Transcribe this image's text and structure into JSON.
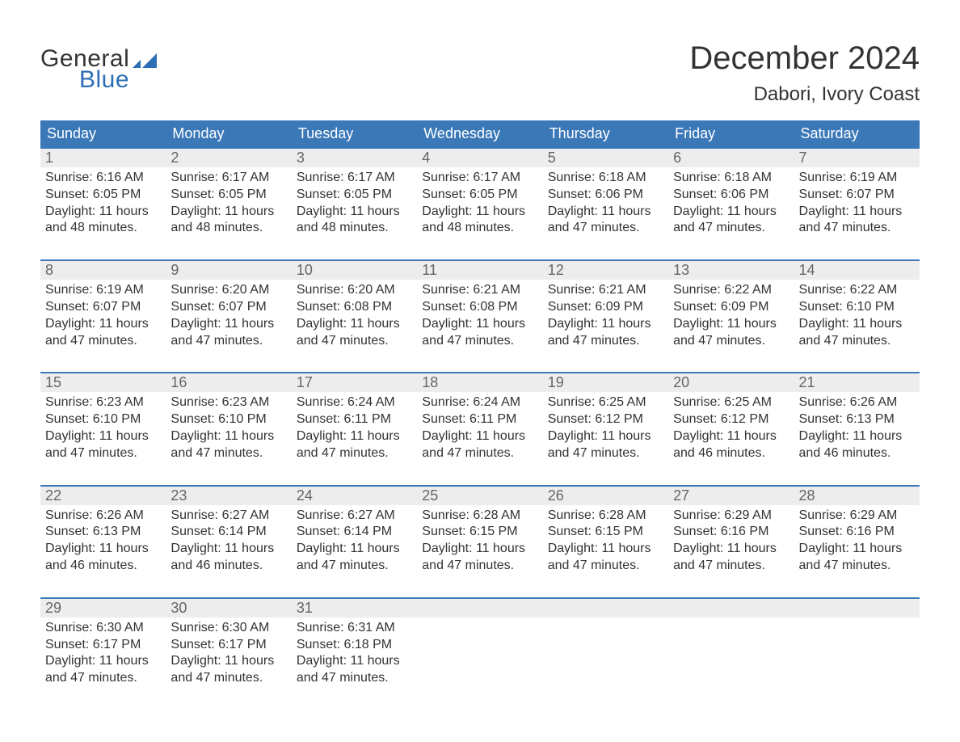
{
  "logo": {
    "word1": "General",
    "word2": "Blue",
    "flag_color": "#2d6fb5",
    "text_color_dark": "#333333",
    "text_color_blue": "#2d6fb5"
  },
  "header": {
    "month_title": "December 2024",
    "location": "Dabori, Ivory Coast"
  },
  "colors": {
    "header_bg": "#3b78b8",
    "header_text": "#ffffff",
    "daynum_bg": "#ededed",
    "daynum_text": "#666666",
    "border": "#3b78b8",
    "body_text": "#333333",
    "background": "#ffffff"
  },
  "weekdays": [
    "Sunday",
    "Monday",
    "Tuesday",
    "Wednesday",
    "Thursday",
    "Friday",
    "Saturday"
  ],
  "weeks": [
    [
      {
        "n": "1",
        "sunrise": "Sunrise: 6:16 AM",
        "sunset": "Sunset: 6:05 PM",
        "daylight": "Daylight: 11 hours and 48 minutes."
      },
      {
        "n": "2",
        "sunrise": "Sunrise: 6:17 AM",
        "sunset": "Sunset: 6:05 PM",
        "daylight": "Daylight: 11 hours and 48 minutes."
      },
      {
        "n": "3",
        "sunrise": "Sunrise: 6:17 AM",
        "sunset": "Sunset: 6:05 PM",
        "daylight": "Daylight: 11 hours and 48 minutes."
      },
      {
        "n": "4",
        "sunrise": "Sunrise: 6:17 AM",
        "sunset": "Sunset: 6:05 PM",
        "daylight": "Daylight: 11 hours and 48 minutes."
      },
      {
        "n": "5",
        "sunrise": "Sunrise: 6:18 AM",
        "sunset": "Sunset: 6:06 PM",
        "daylight": "Daylight: 11 hours and 47 minutes."
      },
      {
        "n": "6",
        "sunrise": "Sunrise: 6:18 AM",
        "sunset": "Sunset: 6:06 PM",
        "daylight": "Daylight: 11 hours and 47 minutes."
      },
      {
        "n": "7",
        "sunrise": "Sunrise: 6:19 AM",
        "sunset": "Sunset: 6:07 PM",
        "daylight": "Daylight: 11 hours and 47 minutes."
      }
    ],
    [
      {
        "n": "8",
        "sunrise": "Sunrise: 6:19 AM",
        "sunset": "Sunset: 6:07 PM",
        "daylight": "Daylight: 11 hours and 47 minutes."
      },
      {
        "n": "9",
        "sunrise": "Sunrise: 6:20 AM",
        "sunset": "Sunset: 6:07 PM",
        "daylight": "Daylight: 11 hours and 47 minutes."
      },
      {
        "n": "10",
        "sunrise": "Sunrise: 6:20 AM",
        "sunset": "Sunset: 6:08 PM",
        "daylight": "Daylight: 11 hours and 47 minutes."
      },
      {
        "n": "11",
        "sunrise": "Sunrise: 6:21 AM",
        "sunset": "Sunset: 6:08 PM",
        "daylight": "Daylight: 11 hours and 47 minutes."
      },
      {
        "n": "12",
        "sunrise": "Sunrise: 6:21 AM",
        "sunset": "Sunset: 6:09 PM",
        "daylight": "Daylight: 11 hours and 47 minutes."
      },
      {
        "n": "13",
        "sunrise": "Sunrise: 6:22 AM",
        "sunset": "Sunset: 6:09 PM",
        "daylight": "Daylight: 11 hours and 47 minutes."
      },
      {
        "n": "14",
        "sunrise": "Sunrise: 6:22 AM",
        "sunset": "Sunset: 6:10 PM",
        "daylight": "Daylight: 11 hours and 47 minutes."
      }
    ],
    [
      {
        "n": "15",
        "sunrise": "Sunrise: 6:23 AM",
        "sunset": "Sunset: 6:10 PM",
        "daylight": "Daylight: 11 hours and 47 minutes."
      },
      {
        "n": "16",
        "sunrise": "Sunrise: 6:23 AM",
        "sunset": "Sunset: 6:10 PM",
        "daylight": "Daylight: 11 hours and 47 minutes."
      },
      {
        "n": "17",
        "sunrise": "Sunrise: 6:24 AM",
        "sunset": "Sunset: 6:11 PM",
        "daylight": "Daylight: 11 hours and 47 minutes."
      },
      {
        "n": "18",
        "sunrise": "Sunrise: 6:24 AM",
        "sunset": "Sunset: 6:11 PM",
        "daylight": "Daylight: 11 hours and 47 minutes."
      },
      {
        "n": "19",
        "sunrise": "Sunrise: 6:25 AM",
        "sunset": "Sunset: 6:12 PM",
        "daylight": "Daylight: 11 hours and 47 minutes."
      },
      {
        "n": "20",
        "sunrise": "Sunrise: 6:25 AM",
        "sunset": "Sunset: 6:12 PM",
        "daylight": "Daylight: 11 hours and 46 minutes."
      },
      {
        "n": "21",
        "sunrise": "Sunrise: 6:26 AM",
        "sunset": "Sunset: 6:13 PM",
        "daylight": "Daylight: 11 hours and 46 minutes."
      }
    ],
    [
      {
        "n": "22",
        "sunrise": "Sunrise: 6:26 AM",
        "sunset": "Sunset: 6:13 PM",
        "daylight": "Daylight: 11 hours and 46 minutes."
      },
      {
        "n": "23",
        "sunrise": "Sunrise: 6:27 AM",
        "sunset": "Sunset: 6:14 PM",
        "daylight": "Daylight: 11 hours and 46 minutes."
      },
      {
        "n": "24",
        "sunrise": "Sunrise: 6:27 AM",
        "sunset": "Sunset: 6:14 PM",
        "daylight": "Daylight: 11 hours and 47 minutes."
      },
      {
        "n": "25",
        "sunrise": "Sunrise: 6:28 AM",
        "sunset": "Sunset: 6:15 PM",
        "daylight": "Daylight: 11 hours and 47 minutes."
      },
      {
        "n": "26",
        "sunrise": "Sunrise: 6:28 AM",
        "sunset": "Sunset: 6:15 PM",
        "daylight": "Daylight: 11 hours and 47 minutes."
      },
      {
        "n": "27",
        "sunrise": "Sunrise: 6:29 AM",
        "sunset": "Sunset: 6:16 PM",
        "daylight": "Daylight: 11 hours and 47 minutes."
      },
      {
        "n": "28",
        "sunrise": "Sunrise: 6:29 AM",
        "sunset": "Sunset: 6:16 PM",
        "daylight": "Daylight: 11 hours and 47 minutes."
      }
    ],
    [
      {
        "n": "29",
        "sunrise": "Sunrise: 6:30 AM",
        "sunset": "Sunset: 6:17 PM",
        "daylight": "Daylight: 11 hours and 47 minutes."
      },
      {
        "n": "30",
        "sunrise": "Sunrise: 6:30 AM",
        "sunset": "Sunset: 6:17 PM",
        "daylight": "Daylight: 11 hours and 47 minutes."
      },
      {
        "n": "31",
        "sunrise": "Sunrise: 6:31 AM",
        "sunset": "Sunset: 6:18 PM",
        "daylight": "Daylight: 11 hours and 47 minutes."
      },
      null,
      null,
      null,
      null
    ]
  ]
}
